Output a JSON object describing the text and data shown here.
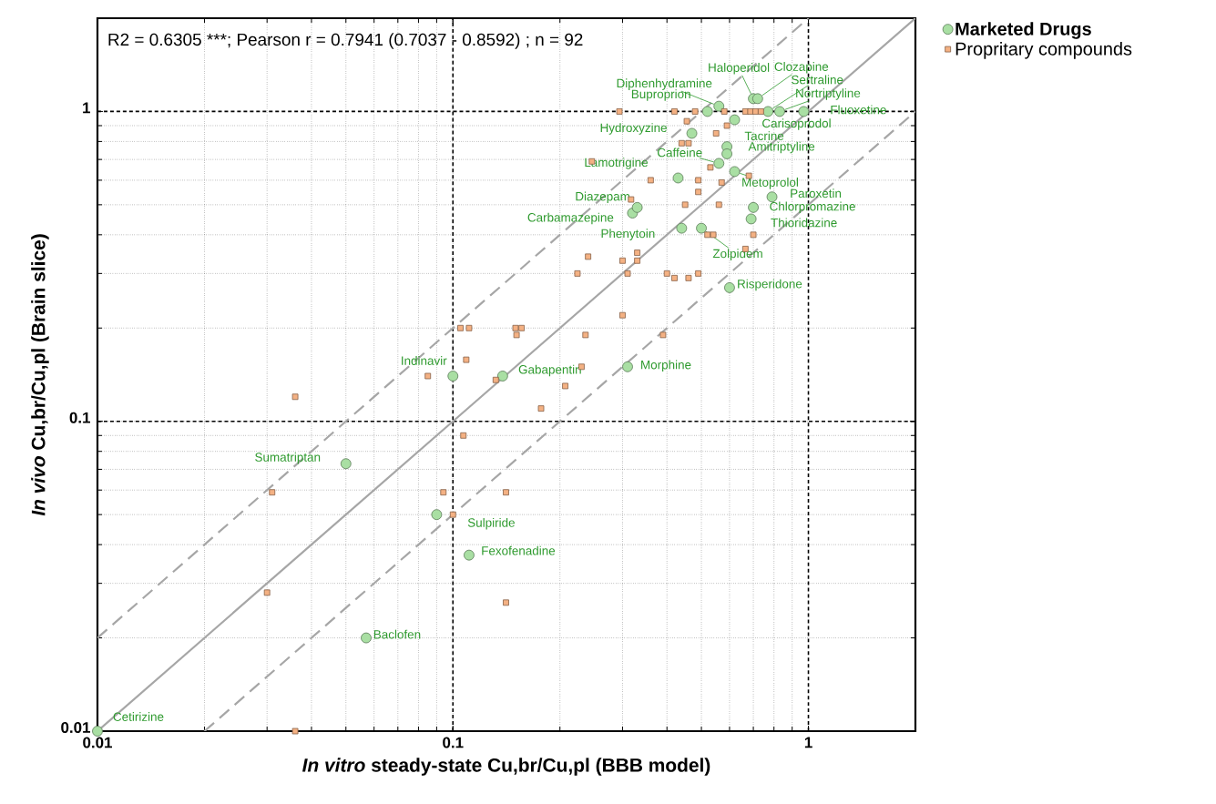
{
  "chart_data": {
    "type": "scatter",
    "xlabel": "*In vitro* steady-state Cu,br/Cu,pl (BBB model)",
    "ylabel": "*In vivo* Cu,br/Cu,pl (Brain slice)",
    "log": "xy",
    "grid": true,
    "legend": "top right",
    "xlim": [
      0.01,
      2
    ],
    "ylim": [
      0.01,
      2
    ],
    "xticks": [
      0.01,
      0.1,
      1
    ],
    "yticks": [
      0.01,
      0.1,
      1
    ],
    "series": [
      {
        "type": "line",
        "color": "#a6a6a6",
        "line_style": "solid",
        "marker": "none",
        "x": [
          0.01,
          2
        ],
        "values": [
          0.01,
          2
        ]
      },
      {
        "type": "line",
        "color": "#a6a6a6",
        "line_style": "dashed",
        "marker": "none",
        "x": [
          0.01,
          1
        ],
        "values": [
          0.02,
          2
        ]
      },
      {
        "type": "line",
        "color": "#a6a6a6",
        "line_style": "dashed",
        "marker": "none",
        "x": [
          0.02,
          2
        ],
        "values": [
          0.01,
          1
        ]
      },
      {
        "name": "Marketed Drugs",
        "marker": "circle",
        "color": "#a9dfa3",
        "x": [
          0.01,
          0.057,
          0.111,
          0.09,
          0.05,
          0.1,
          0.138,
          0.31,
          0.6,
          0.5,
          0.44,
          0.32,
          0.33,
          0.69,
          0.7,
          0.79,
          0.62,
          0.43,
          0.56,
          0.59,
          0.59,
          0.47,
          0.62,
          0.52,
          0.56,
          0.7,
          0.72,
          0.77,
          0.83,
          0.97
        ],
        "values": [
          0.01,
          0.02,
          0.037,
          0.05,
          0.073,
          0.14,
          0.14,
          0.15,
          0.27,
          0.42,
          0.42,
          0.47,
          0.49,
          0.45,
          0.49,
          0.53,
          0.64,
          0.61,
          0.68,
          0.77,
          0.73,
          0.85,
          0.94,
          1.0,
          1.04,
          1.1,
          1.1,
          1.0,
          1.0,
          1.0
        ]
      },
      {
        "name": "Propritary compounds",
        "marker": "square",
        "color": "#f4b183",
        "x": [
          0.036,
          0.031,
          0.03,
          0.036,
          0.085,
          0.109,
          0.107,
          0.094,
          0.1,
          0.105,
          0.111,
          0.15,
          0.156,
          0.151,
          0.236,
          0.3,
          0.39,
          0.132,
          0.23,
          0.207,
          0.177,
          0.224,
          0.31,
          0.4,
          0.42,
          0.141,
          0.141,
          0.294,
          0.246,
          0.317,
          0.24,
          0.33,
          0.3,
          0.33,
          0.42,
          0.48,
          0.58,
          0.665,
          0.687,
          0.71,
          0.735,
          0.455,
          0.59,
          0.55,
          0.44,
          0.46,
          0.53,
          0.68,
          0.36,
          0.49,
          0.57,
          0.49,
          0.45,
          0.56,
          0.52,
          0.54,
          0.7,
          0.665,
          0.46,
          0.49
        ],
        "values": [
          0.12,
          0.059,
          0.028,
          0.01,
          0.14,
          0.158,
          0.09,
          0.059,
          0.05,
          0.2,
          0.2,
          0.2,
          0.2,
          0.19,
          0.19,
          0.22,
          0.19,
          0.136,
          0.15,
          0.13,
          0.11,
          0.3,
          0.3,
          0.3,
          0.29,
          0.026,
          0.059,
          1.0,
          0.69,
          0.52,
          0.34,
          0.35,
          0.33,
          0.33,
          1.0,
          1.0,
          1.0,
          1.0,
          1.0,
          1.0,
          1.0,
          0.93,
          0.9,
          0.85,
          0.79,
          0.79,
          0.66,
          0.62,
          0.6,
          0.6,
          0.59,
          0.55,
          0.5,
          0.5,
          0.4,
          0.4,
          0.4,
          0.36,
          0.29,
          0.3
        ]
      }
    ],
    "annotations": [
      "R2 = 0.6305 ***; Pearson r = 0.7941 (0.7037 - 0.8592) ; n = 92",
      {
        "text": "Cetirizine",
        "x": 0.01,
        "y": 0.01
      },
      {
        "text": "Baclofen",
        "x": 0.057,
        "y": 0.02
      },
      {
        "text": "Fexofenadine",
        "x": 0.111,
        "y": 0.037
      },
      {
        "text": "Sulpiride",
        "x": 0.09,
        "y": 0.05
      },
      {
        "text": "Sumatriptan",
        "x": 0.05,
        "y": 0.073
      },
      {
        "text": "Indinavir",
        "x": 0.1,
        "y": 0.14
      },
      {
        "text": "Gabapentin",
        "x": 0.138,
        "y": 0.14
      },
      {
        "text": "Morphine",
        "x": 0.31,
        "y": 0.15
      },
      {
        "text": "Risperidone",
        "x": 0.6,
        "y": 0.27
      },
      {
        "text": "Zolpidem",
        "x": 0.5,
        "y": 0.42
      },
      {
        "text": "Phenytoin",
        "x": 0.44,
        "y": 0.42
      },
      {
        "text": "Carbamazepine",
        "x": 0.32,
        "y": 0.47
      },
      {
        "text": "Diazepam",
        "x": 0.33,
        "y": 0.49
      },
      {
        "text": "Thioridazine",
        "x": 0.69,
        "y": 0.45
      },
      {
        "text": "Chlorpromazine",
        "x": 0.7,
        "y": 0.49
      },
      {
        "text": "Paroxetin",
        "x": 0.79,
        "y": 0.53
      },
      {
        "text": "Metoprolol",
        "x": 0.62,
        "y": 0.64
      },
      {
        "text": "Lamotrigine",
        "x": 0.43,
        "y": 0.61
      },
      {
        "text": "Caffeine",
        "x": 0.56,
        "y": 0.68
      },
      {
        "text": "Tacrine",
        "x": 0.59,
        "y": 0.77
      },
      {
        "text": "Amitriptyline",
        "x": 0.59,
        "y": 0.73
      },
      {
        "text": "Hydroxyzine",
        "x": 0.47,
        "y": 0.85
      },
      {
        "text": "Carisoprodol",
        "x": 0.62,
        "y": 0.94
      },
      {
        "text": "Buproprion",
        "x": 0.52,
        "y": 1.0
      },
      {
        "text": "Diphenhydramine",
        "x": 0.56,
        "y": 1.04
      },
      {
        "text": "Haloperidol",
        "x": 0.7,
        "y": 1.1
      },
      {
        "text": "Clozapine",
        "x": 0.72,
        "y": 1.1
      },
      {
        "text": "Sertraline",
        "x": 0.77,
        "y": 1.0
      },
      {
        "text": "Nortriptyline",
        "x": 0.83,
        "y": 1.0
      },
      {
        "text": "Fluoxetine",
        "x": 0.97,
        "y": 1.0
      }
    ]
  }
}
